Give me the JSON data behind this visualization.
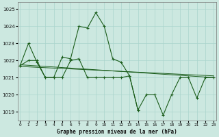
{
  "xlabel": "Graphe pression niveau de la mer (hPa)",
  "bg_color": "#cce8e0",
  "grid_color": "#aad4cc",
  "line_color": "#1a5c1a",
  "ylim": [
    1018.5,
    1025.4
  ],
  "xlim": [
    -0.3,
    23.3
  ],
  "yticks": [
    1019,
    1020,
    1021,
    1022,
    1023,
    1024,
    1025
  ],
  "xticks": [
    0,
    1,
    2,
    3,
    4,
    5,
    6,
    7,
    8,
    9,
    10,
    11,
    12,
    13,
    14,
    15,
    16,
    17,
    18,
    19,
    20,
    21,
    22,
    23
  ],
  "line1_x": [
    0,
    1,
    2,
    3,
    4,
    5,
    6,
    7,
    8,
    9,
    10,
    11,
    12,
    13,
    14
  ],
  "line1_y": [
    1021.7,
    1023.0,
    1021.9,
    1021.0,
    1021.0,
    1022.2,
    1022.1,
    1024.0,
    1023.9,
    1024.8,
    1024.0,
    1022.1,
    1021.9,
    1021.1,
    1019.1
  ],
  "trend_x": [
    0,
    23
  ],
  "trend_y": [
    1021.75,
    1021.0
  ],
  "trend2_x": [
    0,
    23
  ],
  "trend2_y": [
    1021.65,
    1021.1
  ],
  "line3_x": [
    0,
    1,
    2,
    3,
    4,
    5,
    6,
    7,
    8,
    9,
    10,
    11,
    12,
    13,
    14,
    15,
    16,
    17,
    18,
    19,
    20,
    21,
    22,
    23
  ],
  "line3_y": [
    1021.7,
    1022.0,
    1022.0,
    1021.0,
    1021.0,
    1021.0,
    1022.0,
    1022.1,
    1021.0,
    1021.0,
    1021.0,
    1021.0,
    1021.0,
    1021.1,
    1019.1,
    1020.0,
    1020.0,
    1018.8,
    1020.0,
    1021.0,
    1021.0,
    1019.8,
    1021.0,
    1021.0
  ]
}
